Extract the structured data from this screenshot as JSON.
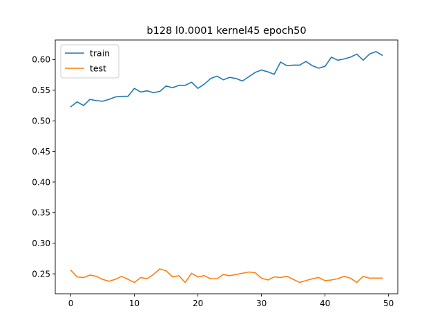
{
  "chart_data": {
    "type": "line",
    "title": "b128 l0.0001 kernel45 epoch50",
    "xlabel": "",
    "ylabel": "",
    "xlim": [
      -2.45,
      51.45
    ],
    "ylim": [
      0.2175,
      0.632
    ],
    "xticks": [
      0,
      10,
      20,
      30,
      40,
      50
    ],
    "yticks": [
      0.25,
      0.3,
      0.35,
      0.4,
      0.45,
      0.5,
      0.55,
      0.6
    ],
    "ytick_labels": [
      "0.25",
      "0.30",
      "0.35",
      "0.40",
      "0.45",
      "0.50",
      "0.55",
      "0.60"
    ],
    "grid": false,
    "legend": {
      "placement": "top-left"
    },
    "x": [
      0,
      1,
      2,
      3,
      4,
      5,
      6,
      7,
      8,
      9,
      10,
      11,
      12,
      13,
      14,
      15,
      16,
      17,
      18,
      19,
      20,
      21,
      22,
      23,
      24,
      25,
      26,
      27,
      28,
      29,
      30,
      31,
      32,
      33,
      34,
      35,
      36,
      37,
      38,
      39,
      40,
      41,
      42,
      43,
      44,
      45,
      46,
      47,
      48,
      49
    ],
    "series": [
      {
        "name": "train",
        "color": "#1f77b4",
        "values": [
          0.523,
          0.531,
          0.525,
          0.535,
          0.533,
          0.532,
          0.535,
          0.539,
          0.54,
          0.54,
          0.553,
          0.547,
          0.549,
          0.546,
          0.548,
          0.557,
          0.554,
          0.558,
          0.558,
          0.563,
          0.553,
          0.56,
          0.569,
          0.573,
          0.567,
          0.571,
          0.569,
          0.565,
          0.572,
          0.579,
          0.583,
          0.58,
          0.576,
          0.596,
          0.59,
          0.591,
          0.591,
          0.597,
          0.59,
          0.586,
          0.589,
          0.604,
          0.599,
          0.601,
          0.604,
          0.609,
          0.599,
          0.609,
          0.613,
          0.607
        ]
      },
      {
        "name": "test",
        "color": "#ff7f0e",
        "values": [
          0.256,
          0.245,
          0.244,
          0.248,
          0.246,
          0.241,
          0.238,
          0.241,
          0.246,
          0.241,
          0.236,
          0.244,
          0.242,
          0.249,
          0.258,
          0.255,
          0.245,
          0.247,
          0.236,
          0.251,
          0.245,
          0.247,
          0.242,
          0.242,
          0.249,
          0.247,
          0.249,
          0.251,
          0.253,
          0.252,
          0.243,
          0.24,
          0.245,
          0.244,
          0.246,
          0.241,
          0.236,
          0.239,
          0.242,
          0.244,
          0.239,
          0.24,
          0.242,
          0.246,
          0.243,
          0.236,
          0.246,
          0.243,
          0.243,
          0.243
        ]
      }
    ]
  }
}
